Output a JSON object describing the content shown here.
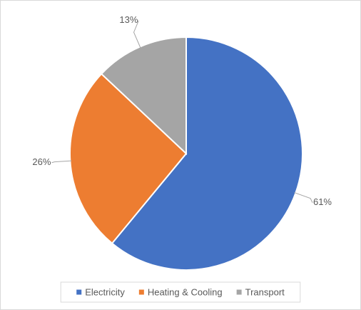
{
  "chart_data": {
    "type": "pie",
    "categories": [
      "Electricity",
      "Heating & Cooling",
      "Transport"
    ],
    "values": [
      61,
      26,
      13
    ],
    "value_labels": [
      "61%",
      "26%",
      "13%"
    ],
    "colors": [
      "#4472c4",
      "#ed7d31",
      "#a5a5a5"
    ],
    "legend": "bottom"
  }
}
